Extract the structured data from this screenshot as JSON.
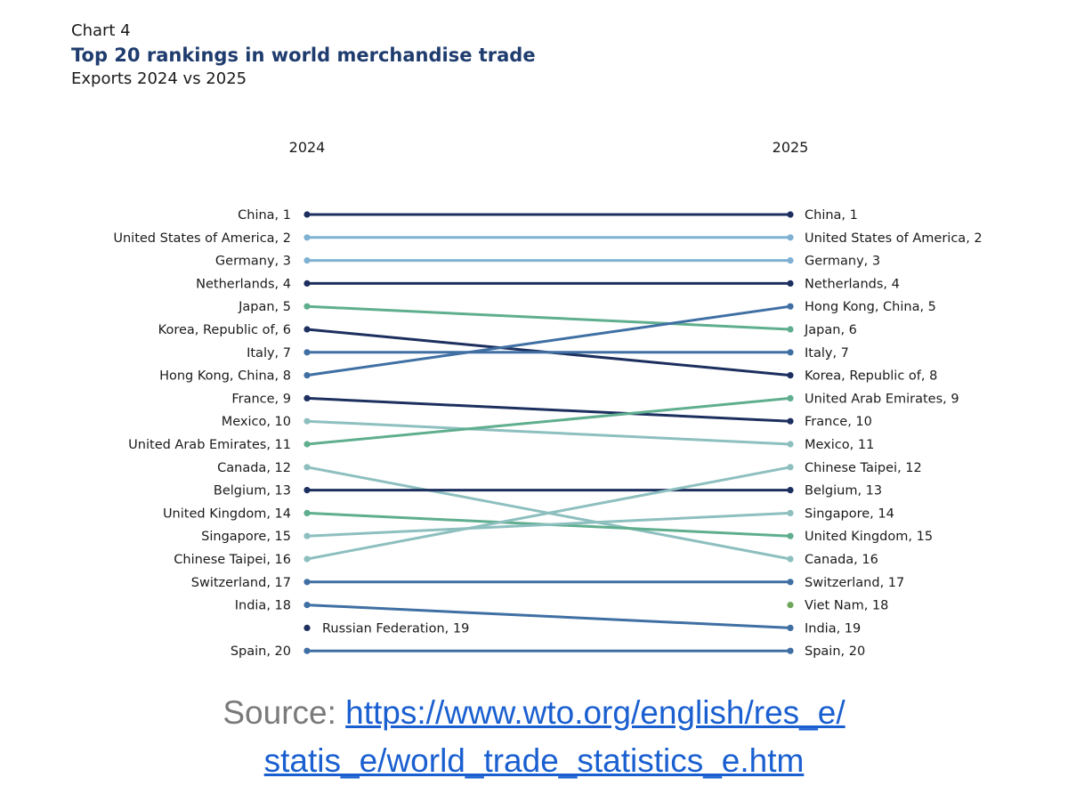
{
  "chart_number": "Chart 4",
  "title": "Top 20 rankings in world merchandise trade",
  "subtitle": "Exports 2024 vs 2025",
  "source": {
    "label": "Source: ",
    "link_part1": "https://www.wto.org/english/res_e/",
    "link_part2": "statis_e/world_trade_statistics_e.htm"
  },
  "chart_data": {
    "type": "slope",
    "columns": [
      "2024",
      "2025"
    ],
    "colors": {
      "navy": "#1c2f5e",
      "light_blue": "#7fb1d3",
      "steel_blue": "#3f6fa3",
      "green": "#5fae8e",
      "pale_teal": "#8ebfbf",
      "viet_green": "#6fa75a"
    },
    "series": [
      {
        "name": "China",
        "rank_2024": 1,
        "rank_2025": 1,
        "color": "#1c2f5e"
      },
      {
        "name": "United States of America",
        "rank_2024": 2,
        "rank_2025": 2,
        "color": "#7fb1d3"
      },
      {
        "name": "Germany",
        "rank_2024": 3,
        "rank_2025": 3,
        "color": "#7fb1d3"
      },
      {
        "name": "Netherlands",
        "rank_2024": 4,
        "rank_2025": 4,
        "color": "#1c2f5e"
      },
      {
        "name": "Japan",
        "rank_2024": 5,
        "rank_2025": 6,
        "color": "#5fae8e"
      },
      {
        "name": "Korea, Republic of",
        "rank_2024": 6,
        "rank_2025": 8,
        "color": "#1c2f5e"
      },
      {
        "name": "Italy",
        "rank_2024": 7,
        "rank_2025": 7,
        "color": "#3f6fa3"
      },
      {
        "name": "Hong Kong, China",
        "rank_2024": 8,
        "rank_2025": 5,
        "color": "#3f6fa3"
      },
      {
        "name": "France",
        "rank_2024": 9,
        "rank_2025": 10,
        "color": "#1c2f5e"
      },
      {
        "name": "Mexico",
        "rank_2024": 10,
        "rank_2025": 11,
        "color": "#8ebfbf"
      },
      {
        "name": "United Arab Emirates",
        "rank_2024": 11,
        "rank_2025": 9,
        "color": "#5fae8e"
      },
      {
        "name": "Canada",
        "rank_2024": 12,
        "rank_2025": 16,
        "color": "#8ebfbf"
      },
      {
        "name": "Belgium",
        "rank_2024": 13,
        "rank_2025": 13,
        "color": "#1c2f5e"
      },
      {
        "name": "United Kingdom",
        "rank_2024": 14,
        "rank_2025": 15,
        "color": "#5fae8e"
      },
      {
        "name": "Singapore",
        "rank_2024": 15,
        "rank_2025": 14,
        "color": "#8ebfbf"
      },
      {
        "name": "Chinese Taipei",
        "rank_2024": 16,
        "rank_2025": 12,
        "color": "#8ebfbf"
      },
      {
        "name": "Switzerland",
        "rank_2024": 17,
        "rank_2025": 17,
        "color": "#3f6fa3"
      },
      {
        "name": "India",
        "rank_2024": 18,
        "rank_2025": 19,
        "color": "#3f6fa3"
      },
      {
        "name": "Russian Federation",
        "rank_2024": 19,
        "rank_2025": null,
        "color": "#1c2f5e"
      },
      {
        "name": "Viet Nam",
        "rank_2024": null,
        "rank_2025": 18,
        "color": "#6fa75a"
      },
      {
        "name": "Spain",
        "rank_2024": 20,
        "rank_2025": 20,
        "color": "#3f6fa3"
      }
    ]
  }
}
